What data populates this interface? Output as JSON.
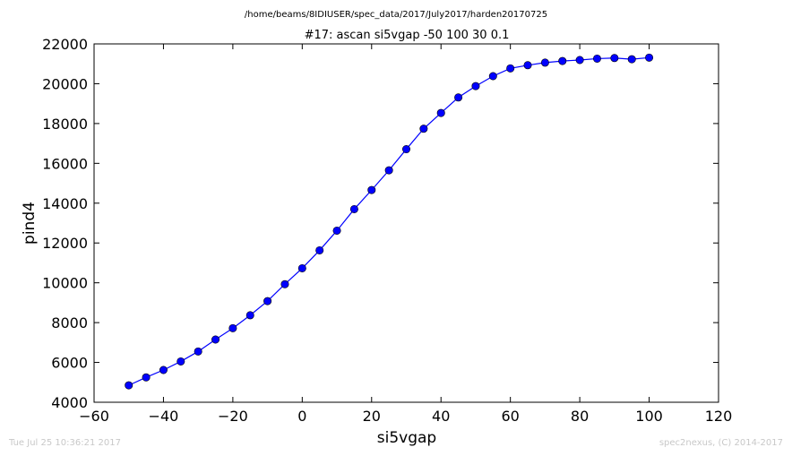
{
  "chart_data": {
    "type": "line",
    "suptitle": "/home/beams/8IDIUSER/spec_data/2017/July2017/harden20170725",
    "title": "#17: ascan  si5vgap -50 100  30 0.1",
    "xlabel": "si5vgap",
    "ylabel": "pind4",
    "xlim": [
      -60,
      120
    ],
    "ylim": [
      4000,
      22000
    ],
    "xticks": [
      -60,
      -40,
      -20,
      0,
      20,
      40,
      60,
      80,
      100,
      120
    ],
    "yticks": [
      4000,
      6000,
      8000,
      10000,
      12000,
      14000,
      16000,
      18000,
      20000,
      22000
    ],
    "xtick_labels": [
      "−60",
      "−40",
      "−20",
      "0",
      "20",
      "40",
      "60",
      "80",
      "100",
      "120"
    ],
    "ytick_labels": [
      "4000",
      "6000",
      "8000",
      "10000",
      "12000",
      "14000",
      "16000",
      "18000",
      "20000",
      "22000"
    ],
    "grid": false,
    "series": [
      {
        "color": "#0000ff",
        "marker": "circle",
        "x": [
          -50,
          -45,
          -40,
          -35,
          -30,
          -25,
          -20,
          -15,
          -10,
          -5,
          0,
          5,
          10,
          15,
          20,
          25,
          30,
          35,
          40,
          45,
          50,
          55,
          60,
          65,
          70,
          75,
          80,
          85,
          90,
          95,
          100
        ],
        "values": [
          4850,
          5250,
          5620,
          6050,
          6550,
          7150,
          7720,
          8370,
          9080,
          9930,
          10730,
          11630,
          12620,
          13700,
          14660,
          15650,
          16710,
          17740,
          18530,
          19310,
          19880,
          20380,
          20770,
          20930,
          21060,
          21140,
          21190,
          21260,
          21290,
          21230,
          21310
        ]
      }
    ]
  },
  "footer": {
    "timestamp": "Tue Jul 25 10:36:21 2017",
    "credit": "spec2nexus, (C) 2014-2017"
  }
}
